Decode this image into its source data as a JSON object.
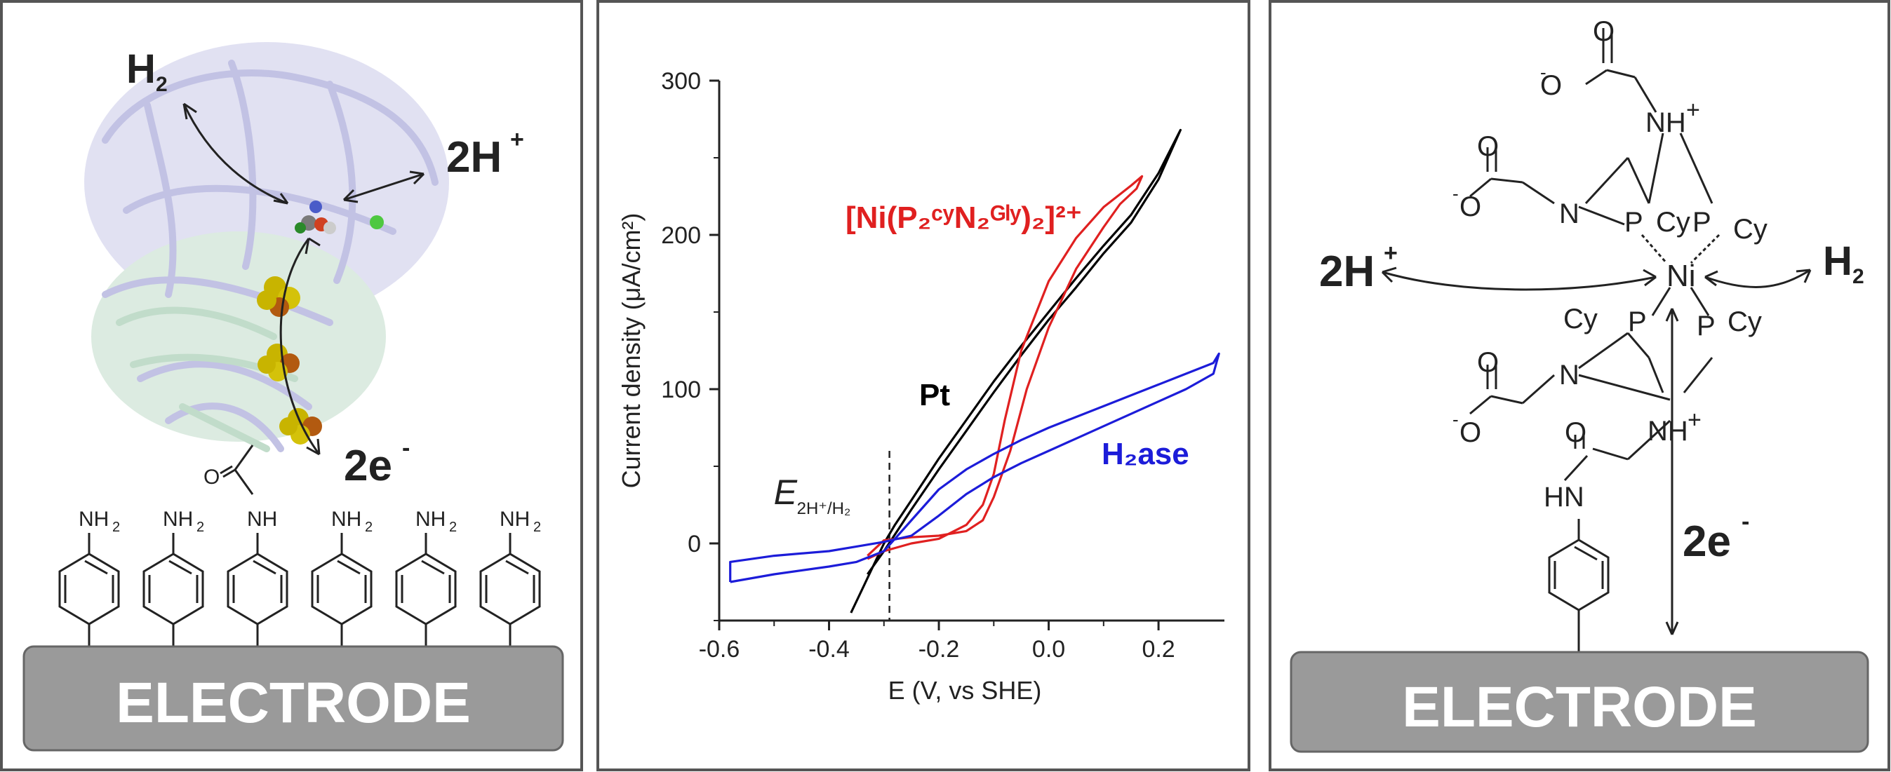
{
  "left_panel": {
    "h2_label": "H",
    "h2_sub": "2",
    "protons_label": "2H",
    "protons_sup": "+",
    "electrons_label": "2e",
    "electrons_sup": "-",
    "carbonyl_o": "O",
    "amide_nh": "NH",
    "amine_nh2": "NH",
    "amine_sub": "2",
    "electrode_label": "ELECTRODE"
  },
  "right_panel": {
    "protons_label": "2H",
    "protons_sup": "+",
    "h2_label": "H",
    "h2_sub": "2",
    "electrons_label": "2e",
    "electrons_sup": "-",
    "metal": "Ni",
    "phosphorus": "P",
    "nitrogen": "N",
    "ammonium": "NH",
    "ammonium_sup": "+",
    "cyclohexyl": "Cy",
    "oxygen": "O",
    "oxide": "O",
    "oxide_sup": "-",
    "amide_hn": "HN",
    "electrode_label": "ELECTRODE"
  },
  "chart_data": {
    "type": "line",
    "xlabel": "E (V, vs SHE)",
    "ylabel": "Current density (μA/cm²)",
    "xlim": [
      -0.6,
      0.32
    ],
    "ylim": [
      -50,
      300
    ],
    "x_ticks": [
      "-0.6",
      "-0.4",
      "-0.2",
      "0.0",
      "0.2"
    ],
    "y_ticks": [
      "0",
      "100",
      "200",
      "300"
    ],
    "grid": false,
    "marker": {
      "x": -0.29,
      "label": "E",
      "sub": "2H⁺/H₂"
    },
    "series": [
      {
        "name": "Pt",
        "color": "#000000",
        "x": [
          -0.36,
          -0.34,
          -0.32,
          -0.3,
          -0.28,
          -0.25,
          -0.2,
          -0.15,
          -0.1,
          -0.05,
          0.0,
          0.05,
          0.1,
          0.15,
          0.2,
          0.24,
          0.2,
          0.15,
          0.1,
          0.05,
          0.0,
          -0.05,
          -0.1,
          -0.15,
          -0.2,
          -0.25,
          -0.3,
          -0.33
        ],
        "y": [
          -45,
          -30,
          -15,
          0,
          12,
          28,
          55,
          80,
          105,
          128,
          150,
          172,
          193,
          213,
          240,
          268,
          236,
          208,
          188,
          166,
          145,
          122,
          98,
          73,
          48,
          22,
          -5,
          -20
        ]
      },
      {
        "name": "[Ni(P₂ᶜʸN₂ᴳˡʸ)₂]²⁺",
        "color": "#e02020",
        "x": [
          -0.33,
          -0.3,
          -0.25,
          -0.2,
          -0.15,
          -0.12,
          -0.1,
          -0.08,
          -0.05,
          0.0,
          0.05,
          0.1,
          0.15,
          0.17,
          0.16,
          0.13,
          0.1,
          0.05,
          0.0,
          -0.04,
          -0.07,
          -0.1,
          -0.12,
          -0.15,
          -0.2,
          -0.25,
          -0.3,
          -0.33
        ],
        "y": [
          -10,
          -5,
          0,
          3,
          12,
          25,
          45,
          80,
          125,
          170,
          198,
          218,
          232,
          238,
          230,
          220,
          205,
          178,
          140,
          100,
          60,
          30,
          15,
          8,
          5,
          4,
          2,
          -8
        ]
      },
      {
        "name": "H₂ase",
        "color": "#1c1cd9",
        "x": [
          -0.58,
          -0.5,
          -0.4,
          -0.35,
          -0.3,
          -0.25,
          -0.2,
          -0.15,
          -0.1,
          -0.05,
          0.0,
          0.05,
          0.1,
          0.15,
          0.2,
          0.25,
          0.3,
          0.31,
          0.3,
          0.25,
          0.2,
          0.15,
          0.1,
          0.05,
          0.0,
          -0.05,
          -0.1,
          -0.15,
          -0.2,
          -0.25,
          -0.3,
          -0.35,
          -0.4,
          -0.5,
          -0.58,
          -0.58
        ],
        "y": [
          -25,
          -20,
          -15,
          -12,
          -5,
          15,
          35,
          48,
          58,
          67,
          75,
          82,
          89,
          96,
          103,
          110,
          117,
          123,
          110,
          100,
          92,
          84,
          76,
          68,
          60,
          52,
          43,
          32,
          18,
          5,
          1,
          -2,
          -5,
          -8,
          -12,
          -25
        ]
      }
    ],
    "series_labels": [
      {
        "series": 0,
        "text": "Pt"
      },
      {
        "series": 1,
        "text": "[Ni(P₂ᶜʸN₂ᴳˡʸ)₂]²⁺"
      },
      {
        "series": 2,
        "text": "H₂ase"
      }
    ]
  }
}
